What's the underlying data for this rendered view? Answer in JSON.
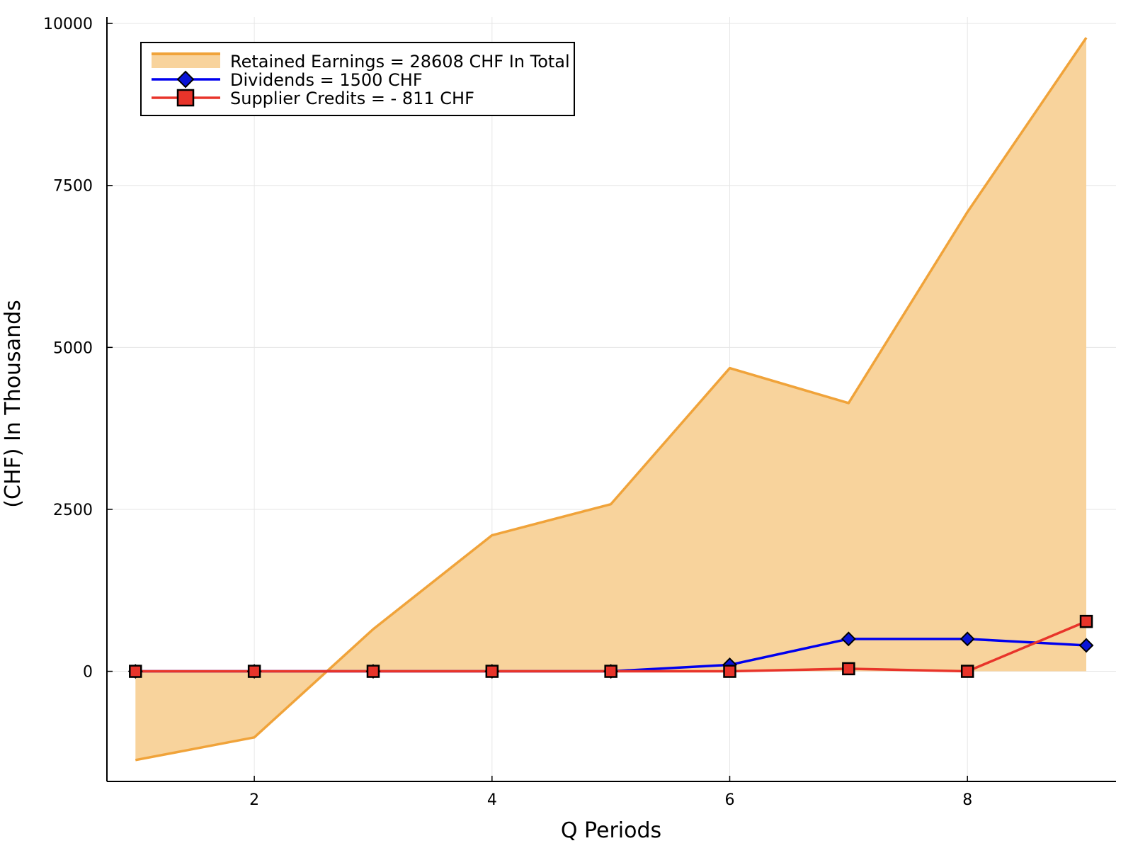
{
  "chart_data": {
    "type": "area",
    "title": "",
    "xlabel": "Q Periods",
    "ylabel": "(CHF) In Thousands",
    "xlim": [
      0.76,
      9.25
    ],
    "ylim": [
      -1700,
      10100
    ],
    "x_ticks": [
      2,
      4,
      6,
      8
    ],
    "y_ticks": [
      0,
      2500,
      5000,
      7500,
      10000
    ],
    "grid": true,
    "legend_position": "top-left",
    "x": [
      1,
      2,
      3,
      4,
      5,
      6,
      7,
      8,
      9
    ],
    "series": [
      {
        "name": "Retained Earnings = 28608 CHF In Total",
        "kind": "area",
        "color": "#F0A33A",
        "fill_color": "#F8D39C",
        "marker": "none",
        "values": [
          -1370,
          -1020,
          650,
          2100,
          2580,
          4680,
          4140,
          7090,
          9780
        ]
      },
      {
        "name": "Dividends = 1500  CHF",
        "kind": "line",
        "color": "#0000EE",
        "marker_color": "#0A14D6",
        "marker": "diamond",
        "values": [
          0,
          0,
          0,
          0,
          0,
          100,
          500,
          500,
          400
        ]
      },
      {
        "name": "Supplier Credits = - 811  CHF",
        "kind": "line",
        "color": "#E8342A",
        "marker_color": "#E8342A",
        "marker": "square",
        "values": [
          0,
          0,
          0,
          0,
          0,
          0,
          40,
          0,
          770
        ]
      }
    ]
  }
}
